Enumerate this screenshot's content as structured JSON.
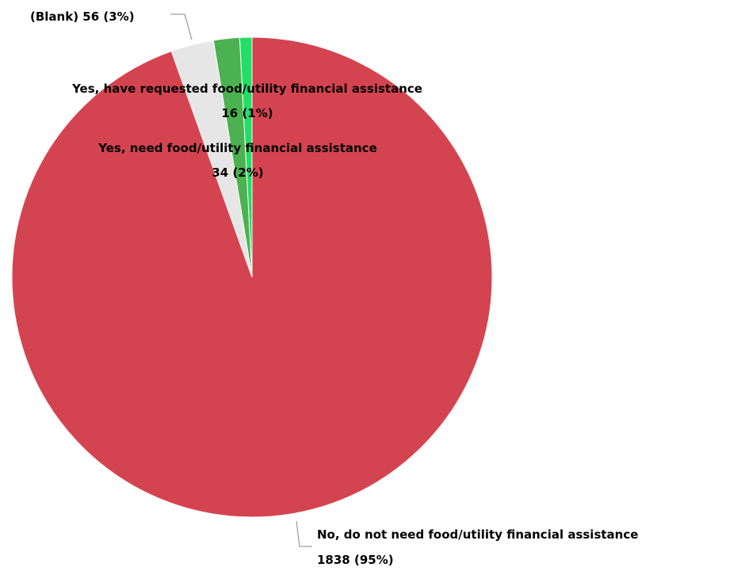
{
  "chart_data": {
    "type": "pie",
    "title": "",
    "slices": [
      {
        "label": "Yes, have requested food/utility financial assistance",
        "value": 16,
        "value_text": "16 (1%)",
        "color": "#22dd66"
      },
      {
        "label": "Yes, need food/utility financial assistance",
        "value": 34,
        "value_text": "34 (2%)",
        "color": "#4cb150"
      },
      {
        "label": "(Blank)",
        "value": 56,
        "value_text": "56 (3%)",
        "color": "#e6e6e6"
      },
      {
        "label": "No, do not need food/utility financial assistance",
        "value": 1838,
        "value_text": "1838 (95%)",
        "color": "#d44450"
      }
    ]
  }
}
